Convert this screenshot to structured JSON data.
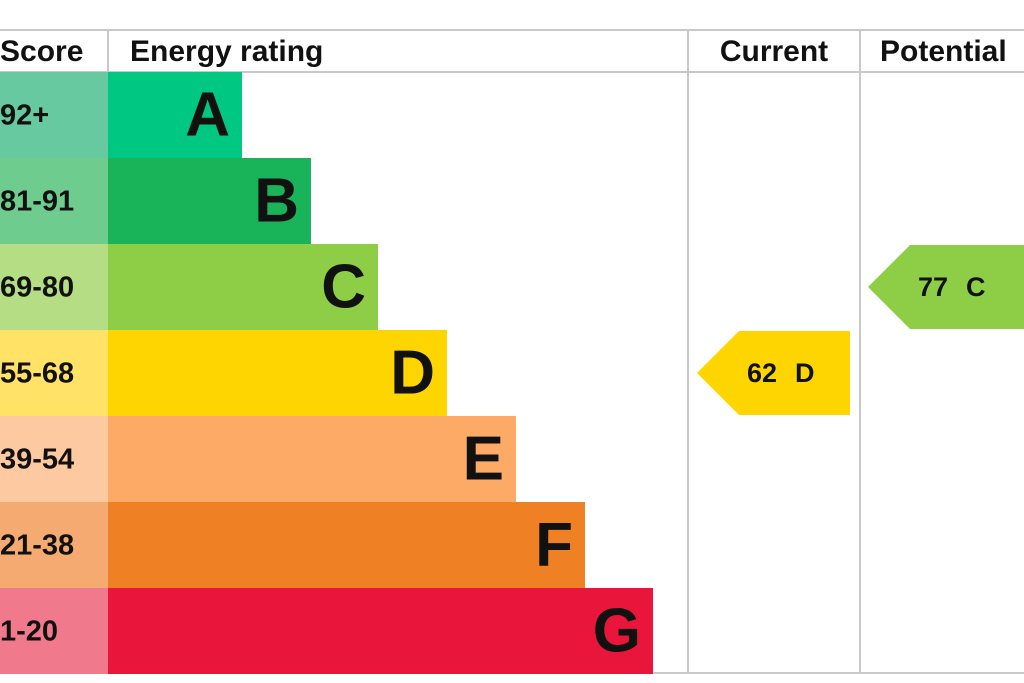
{
  "header": {
    "score": "Score",
    "rating": "Energy rating",
    "current": "Current",
    "potential": "Potential"
  },
  "bands": [
    {
      "score": "92+",
      "letter": "A"
    },
    {
      "score": "81-91",
      "letter": "B"
    },
    {
      "score": "69-80",
      "letter": "C"
    },
    {
      "score": "55-68",
      "letter": "D"
    },
    {
      "score": "39-54",
      "letter": "E"
    },
    {
      "score": "21-38",
      "letter": "F"
    },
    {
      "score": "1-20",
      "letter": "G"
    }
  ],
  "current": {
    "value": 62,
    "band": "D"
  },
  "potential": {
    "value": 77,
    "band": "C"
  }
}
